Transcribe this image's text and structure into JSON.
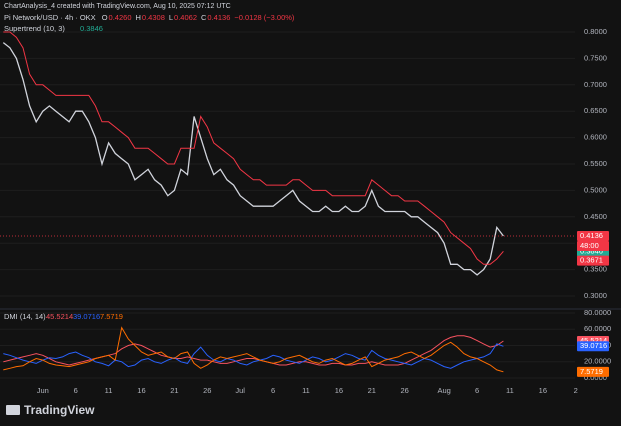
{
  "header": {
    "credit": "ChartAnalysis_4 created with TradingView.com, Aug 10, 2025 07:12 UTC",
    "symbol": "Pi Network/USD · 4h · OKX",
    "ohlc": [
      {
        "label": "O",
        "value": "0.4260"
      },
      {
        "label": "H",
        "value": "0.4308"
      },
      {
        "label": "L",
        "value": "0.4062"
      },
      {
        "label": "C",
        "value": "0.4136"
      }
    ],
    "change": "−0.0128 (−3.00%)",
    "logo": "TradingView"
  },
  "chart_data": [
    {
      "type": "line",
      "categories": [
        null,
        null,
        null,
        null,
        null,
        null,
        "Jun",
        null,
        null,
        null,
        null,
        "6",
        null,
        null,
        null,
        null,
        "11",
        null,
        null,
        null,
        null,
        "16",
        null,
        null,
        null,
        null,
        "21",
        null,
        null,
        null,
        null,
        "26",
        null,
        null,
        null,
        null,
        "Jul",
        null,
        null,
        null,
        null,
        "6",
        null,
        null,
        null,
        null,
        "11",
        null,
        null,
        null,
        null,
        "16",
        null,
        null,
        null,
        null,
        "21",
        null,
        null,
        null,
        null,
        "26",
        null,
        null,
        null,
        null,
        null,
        "Aug",
        null,
        null,
        null,
        null,
        "6",
        null,
        null,
        null,
        null,
        "11",
        null,
        null,
        null,
        null,
        "16",
        null,
        null,
        null,
        null,
        "2"
      ],
      "series": [
        {
          "name": "Pi Network/USD · 4h · OKX",
          "color": "#d1d4dc",
          "values": [
            0.78,
            0.77,
            0.75,
            0.71,
            0.66,
            0.63,
            0.65,
            0.66,
            0.65,
            0.64,
            0.63,
            0.65,
            0.65,
            0.63,
            0.6,
            0.55,
            0.59,
            0.57,
            0.56,
            0.55,
            0.52,
            0.53,
            0.54,
            0.52,
            0.51,
            0.49,
            0.5,
            0.54,
            0.53,
            0.64,
            0.6,
            0.56,
            0.53,
            0.54,
            0.52,
            0.51,
            0.49,
            0.48,
            0.47,
            0.47,
            0.47,
            0.47,
            0.48,
            0.49,
            0.5,
            0.48,
            0.47,
            0.46,
            0.46,
            0.47,
            0.46,
            0.46,
            0.47,
            0.46,
            0.46,
            0.47,
            0.5,
            0.47,
            0.46,
            0.46,
            0.46,
            0.46,
            0.45,
            0.45,
            0.44,
            0.43,
            0.42,
            0.4,
            0.36,
            0.36,
            0.35,
            0.35,
            0.34,
            0.35,
            0.37,
            0.43,
            0.4136,
            null,
            null,
            null,
            null,
            null,
            null,
            null,
            null,
            null,
            null,
            null
          ]
        },
        {
          "name": "Supertrend (10, 3)",
          "color": "#f23645",
          "values": [
            0.8,
            0.8,
            0.79,
            0.77,
            0.72,
            0.7,
            0.7,
            0.69,
            0.68,
            0.68,
            0.68,
            0.68,
            0.68,
            0.68,
            0.66,
            0.63,
            0.63,
            0.62,
            0.61,
            0.6,
            0.58,
            0.58,
            0.58,
            0.57,
            0.56,
            0.55,
            0.55,
            0.58,
            0.58,
            0.58,
            0.64,
            0.62,
            0.59,
            0.58,
            0.57,
            0.56,
            0.54,
            0.53,
            0.52,
            0.52,
            0.51,
            0.51,
            0.51,
            0.51,
            0.52,
            0.52,
            0.51,
            0.5,
            0.5,
            0.5,
            0.49,
            0.49,
            0.49,
            0.49,
            0.49,
            0.49,
            0.52,
            0.51,
            0.5,
            0.49,
            0.49,
            0.48,
            0.48,
            0.48,
            0.47,
            0.46,
            0.45,
            0.44,
            0.42,
            0.41,
            0.4,
            0.39,
            0.37,
            0.36,
            0.36,
            0.37,
            0.3846,
            null,
            null,
            null,
            null,
            null,
            null,
            null,
            null,
            null,
            null,
            null
          ]
        }
      ],
      "ylim": [
        0.3,
        0.8
      ],
      "yticks": [
        {
          "value": 0.8,
          "label": "0.8000"
        },
        {
          "value": 0.75,
          "label": "0.7500"
        },
        {
          "value": 0.7,
          "label": "0.7000"
        },
        {
          "value": 0.65,
          "label": "0.6500"
        },
        {
          "value": 0.6,
          "label": "0.6000"
        },
        {
          "value": 0.55,
          "label": "0.5500"
        },
        {
          "value": 0.5,
          "label": "0.5000"
        },
        {
          "value": 0.45,
          "label": "0.4500"
        },
        {
          "value": 0.4,
          "label": "0.4000"
        },
        {
          "value": 0.35,
          "label": "0.3500"
        },
        {
          "value": 0.3,
          "label": "0.3000"
        }
      ],
      "extra_badges": [
        {
          "text": "48:00",
          "color": "#f23645"
        },
        {
          "value": 0.3671,
          "color": "#f23645"
        }
      ]
    },
    {
      "type": "line",
      "title": "DMI (14, 14)",
      "series": [
        {
          "name": "ADX",
          "color": "#f7525f",
          "values": [
            20,
            22,
            24,
            26,
            28,
            30,
            28,
            24,
            20,
            18,
            16,
            18,
            20,
            22,
            24,
            26,
            28,
            30,
            36,
            40,
            42,
            40,
            36,
            32,
            28,
            26,
            24,
            24,
            26,
            24,
            22,
            22,
            20,
            18,
            18,
            20,
            22,
            24,
            24,
            22,
            20,
            18,
            16,
            16,
            18,
            20,
            20,
            18,
            16,
            16,
            18,
            18,
            16,
            16,
            18,
            18,
            20,
            18,
            16,
            16,
            16,
            18,
            22,
            26,
            30,
            34,
            40,
            46,
            50,
            52,
            52,
            50,
            46,
            42,
            38,
            40,
            45.5214,
            null,
            null,
            null,
            null,
            null,
            null,
            null,
            null,
            null,
            null,
            null
          ]
        },
        {
          "name": "+DI",
          "color": "#2962ff",
          "values": [
            30,
            28,
            25,
            22,
            20,
            18,
            22,
            25,
            24,
            26,
            30,
            32,
            28,
            25,
            20,
            18,
            15,
            22,
            20,
            14,
            16,
            22,
            24,
            20,
            18,
            22,
            25,
            20,
            18,
            30,
            38,
            28,
            22,
            20,
            24,
            22,
            18,
            16,
            20,
            22,
            24,
            28,
            26,
            22,
            20,
            18,
            22,
            26,
            24,
            20,
            22,
            26,
            30,
            28,
            24,
            22,
            34,
            28,
            24,
            22,
            20,
            18,
            16,
            20,
            24,
            22,
            18,
            14,
            12,
            16,
            20,
            22,
            24,
            26,
            30,
            42,
            39.0716,
            null,
            null,
            null,
            null,
            null,
            null,
            null,
            null,
            null,
            null,
            null
          ]
        },
        {
          "name": "-DI",
          "color": "#ff6d00",
          "values": [
            10,
            12,
            14,
            15,
            20,
            24,
            22,
            18,
            16,
            15,
            14,
            16,
            18,
            20,
            24,
            26,
            28,
            22,
            62,
            48,
            40,
            32,
            28,
            30,
            32,
            26,
            24,
            30,
            32,
            18,
            12,
            16,
            22,
            26,
            24,
            26,
            28,
            30,
            26,
            22,
            20,
            18,
            20,
            24,
            26,
            28,
            24,
            20,
            18,
            22,
            24,
            20,
            16,
            18,
            22,
            26,
            14,
            18,
            22,
            24,
            26,
            30,
            32,
            28,
            24,
            28,
            34,
            40,
            44,
            38,
            30,
            26,
            24,
            20,
            16,
            10,
            7.5719,
            null,
            null,
            null,
            null,
            null,
            null,
            null,
            null,
            null,
            null,
            null
          ]
        }
      ],
      "ylim": [
        0,
        80
      ],
      "yticks": [
        {
          "value": 80,
          "label": "80.0000"
        },
        {
          "value": 60,
          "label": "60.0000"
        },
        {
          "value": 40,
          "label": "40.0000"
        },
        {
          "value": 20,
          "label": "20.0000"
        },
        {
          "value": 0,
          "label": "0.0000"
        }
      ]
    }
  ]
}
